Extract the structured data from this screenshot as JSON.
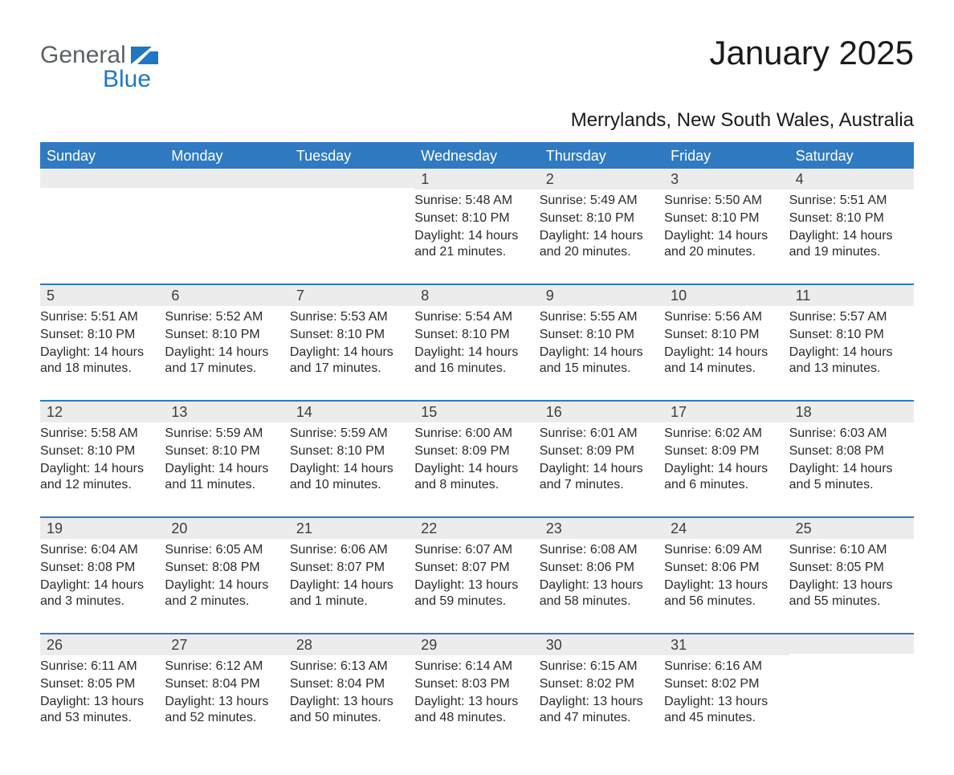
{
  "logo": {
    "word1": "General",
    "word2": "Blue"
  },
  "title": "January 2025",
  "location": "Merrylands, New South Wales, Australia",
  "colors": {
    "header_blue": "#2f7ac1",
    "rule_blue": "#2f7ac1",
    "daynum_bg": "#ececec",
    "text": "#2b2b2b",
    "logo_gray": "#5d6164",
    "logo_blue": "#1e78c2",
    "background": "#ffffff"
  },
  "dow": [
    "Sunday",
    "Monday",
    "Tuesday",
    "Wednesday",
    "Thursday",
    "Friday",
    "Saturday"
  ],
  "labels": {
    "sunrise": "Sunrise",
    "sunset": "Sunset",
    "daylight": "Daylight"
  },
  "weeks": [
    [
      null,
      null,
      null,
      {
        "n": "1",
        "sunrise": "5:48 AM",
        "sunset": "8:10 PM",
        "daylight": "14 hours and 21 minutes."
      },
      {
        "n": "2",
        "sunrise": "5:49 AM",
        "sunset": "8:10 PM",
        "daylight": "14 hours and 20 minutes."
      },
      {
        "n": "3",
        "sunrise": "5:50 AM",
        "sunset": "8:10 PM",
        "daylight": "14 hours and 20 minutes."
      },
      {
        "n": "4",
        "sunrise": "5:51 AM",
        "sunset": "8:10 PM",
        "daylight": "14 hours and 19 minutes."
      }
    ],
    [
      {
        "n": "5",
        "sunrise": "5:51 AM",
        "sunset": "8:10 PM",
        "daylight": "14 hours and 18 minutes."
      },
      {
        "n": "6",
        "sunrise": "5:52 AM",
        "sunset": "8:10 PM",
        "daylight": "14 hours and 17 minutes."
      },
      {
        "n": "7",
        "sunrise": "5:53 AM",
        "sunset": "8:10 PM",
        "daylight": "14 hours and 17 minutes."
      },
      {
        "n": "8",
        "sunrise": "5:54 AM",
        "sunset": "8:10 PM",
        "daylight": "14 hours and 16 minutes."
      },
      {
        "n": "9",
        "sunrise": "5:55 AM",
        "sunset": "8:10 PM",
        "daylight": "14 hours and 15 minutes."
      },
      {
        "n": "10",
        "sunrise": "5:56 AM",
        "sunset": "8:10 PM",
        "daylight": "14 hours and 14 minutes."
      },
      {
        "n": "11",
        "sunrise": "5:57 AM",
        "sunset": "8:10 PM",
        "daylight": "14 hours and 13 minutes."
      }
    ],
    [
      {
        "n": "12",
        "sunrise": "5:58 AM",
        "sunset": "8:10 PM",
        "daylight": "14 hours and 12 minutes."
      },
      {
        "n": "13",
        "sunrise": "5:59 AM",
        "sunset": "8:10 PM",
        "daylight": "14 hours and 11 minutes."
      },
      {
        "n": "14",
        "sunrise": "5:59 AM",
        "sunset": "8:10 PM",
        "daylight": "14 hours and 10 minutes."
      },
      {
        "n": "15",
        "sunrise": "6:00 AM",
        "sunset": "8:09 PM",
        "daylight": "14 hours and 8 minutes."
      },
      {
        "n": "16",
        "sunrise": "6:01 AM",
        "sunset": "8:09 PM",
        "daylight": "14 hours and 7 minutes."
      },
      {
        "n": "17",
        "sunrise": "6:02 AM",
        "sunset": "8:09 PM",
        "daylight": "14 hours and 6 minutes."
      },
      {
        "n": "18",
        "sunrise": "6:03 AM",
        "sunset": "8:08 PM",
        "daylight": "14 hours and 5 minutes."
      }
    ],
    [
      {
        "n": "19",
        "sunrise": "6:04 AM",
        "sunset": "8:08 PM",
        "daylight": "14 hours and 3 minutes."
      },
      {
        "n": "20",
        "sunrise": "6:05 AM",
        "sunset": "8:08 PM",
        "daylight": "14 hours and 2 minutes."
      },
      {
        "n": "21",
        "sunrise": "6:06 AM",
        "sunset": "8:07 PM",
        "daylight": "14 hours and 1 minute."
      },
      {
        "n": "22",
        "sunrise": "6:07 AM",
        "sunset": "8:07 PM",
        "daylight": "13 hours and 59 minutes."
      },
      {
        "n": "23",
        "sunrise": "6:08 AM",
        "sunset": "8:06 PM",
        "daylight": "13 hours and 58 minutes."
      },
      {
        "n": "24",
        "sunrise": "6:09 AM",
        "sunset": "8:06 PM",
        "daylight": "13 hours and 56 minutes."
      },
      {
        "n": "25",
        "sunrise": "6:10 AM",
        "sunset": "8:05 PM",
        "daylight": "13 hours and 55 minutes."
      }
    ],
    [
      {
        "n": "26",
        "sunrise": "6:11 AM",
        "sunset": "8:05 PM",
        "daylight": "13 hours and 53 minutes."
      },
      {
        "n": "27",
        "sunrise": "6:12 AM",
        "sunset": "8:04 PM",
        "daylight": "13 hours and 52 minutes."
      },
      {
        "n": "28",
        "sunrise": "6:13 AM",
        "sunset": "8:04 PM",
        "daylight": "13 hours and 50 minutes."
      },
      {
        "n": "29",
        "sunrise": "6:14 AM",
        "sunset": "8:03 PM",
        "daylight": "13 hours and 48 minutes."
      },
      {
        "n": "30",
        "sunrise": "6:15 AM",
        "sunset": "8:02 PM",
        "daylight": "13 hours and 47 minutes."
      },
      {
        "n": "31",
        "sunrise": "6:16 AM",
        "sunset": "8:02 PM",
        "daylight": "13 hours and 45 minutes."
      },
      null
    ]
  ]
}
